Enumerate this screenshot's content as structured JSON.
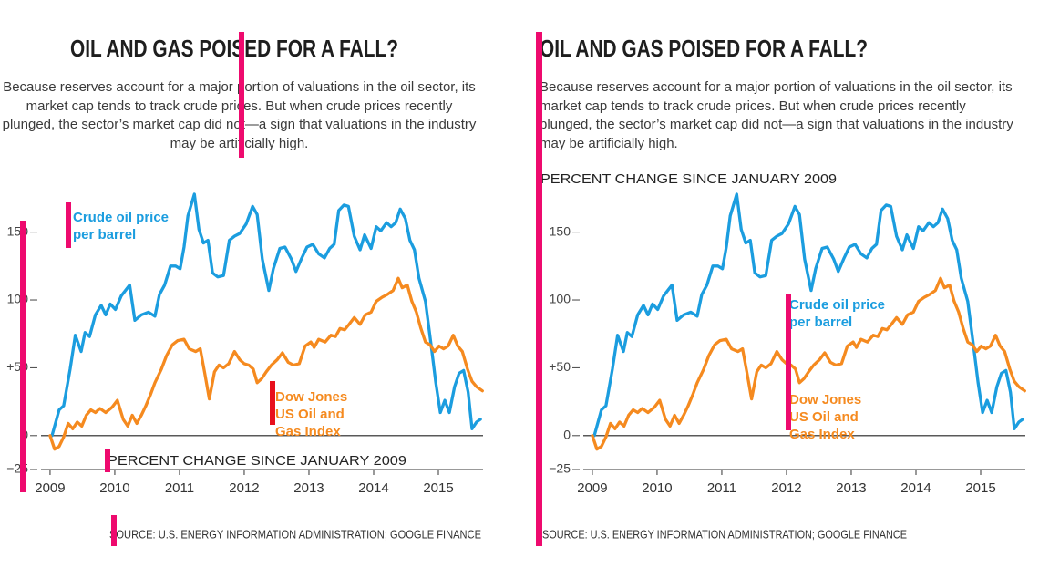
{
  "chart_data": [
    {
      "type": "line",
      "title": "OIL AND GAS POISED FOR A FALL?",
      "subtitle": "Because reserves account for a major portion of valuations in the oil sector, its market cap tends to track crude prices. But when crude prices recently plunged, the sector’s market cap did not—a sign that valuations in the industry may be artificially high.",
      "ylabel": "PERCENT CHANGE SINCE JANUARY 2009",
      "source": "SOURCE: U.S. ENERGY INFORMATION ADMINISTRATION; GOOGLE FINANCE",
      "xlim": [
        2008.86,
        2015.69
      ],
      "xticks": [
        2009,
        2010,
        2011,
        2012,
        2013,
        2014,
        2015
      ],
      "ylim": [
        -25,
        180
      ],
      "yticks": [
        {
          "value": -25,
          "label": "−25"
        },
        0,
        {
          "value": 50,
          "label": "+50"
        },
        100,
        150
      ],
      "zero_line": true,
      "series": [
        {
          "name": "Crude oil price per barrel",
          "color": "#1b9ddf",
          "x": [
            2009.03,
            2009.14,
            2009.21,
            2009.31,
            2009.39,
            2009.48,
            2009.54,
            2009.61,
            2009.7,
            2009.79,
            2009.86,
            2009.93,
            2010.01,
            2010.1,
            2010.23,
            2010.31,
            2010.41,
            2010.52,
            2010.62,
            2010.69,
            2010.77,
            2010.86,
            2010.94,
            2011.01,
            2011.07,
            2011.13,
            2011.23,
            2011.3,
            2011.37,
            2011.44,
            2011.51,
            2011.59,
            2011.68,
            2011.77,
            2011.85,
            2011.93,
            2012.03,
            2012.13,
            2012.2,
            2012.28,
            2012.38,
            2012.45,
            2012.55,
            2012.63,
            2012.73,
            2012.8,
            2012.89,
            2012.97,
            2013.06,
            2013.15,
            2013.24,
            2013.32,
            2013.39,
            2013.46,
            2013.54,
            2013.61,
            2013.7,
            2013.79,
            2013.86,
            2013.96,
            2014.04,
            2014.11,
            2014.2,
            2014.27,
            2014.34,
            2014.41,
            2014.49,
            2014.56,
            2014.63,
            2014.7,
            2014.8,
            2014.89,
            2014.96,
            2015.03,
            2015.1,
            2015.17,
            2015.25,
            2015.32,
            2015.39,
            2015.46,
            2015.52,
            2015.59,
            2015.65
          ],
          "values": [
            0,
            19,
            22,
            49,
            74,
            62,
            76,
            73,
            89,
            96,
            89,
            97,
            93,
            103,
            111,
            85,
            89,
            91,
            88,
            104,
            111,
            125,
            125,
            123,
            139,
            162,
            178,
            152,
            142,
            144,
            120,
            117,
            118,
            144,
            147,
            149,
            156,
            169,
            163,
            130,
            107,
            123,
            138,
            139,
            130,
            121,
            131,
            139,
            141,
            134,
            131,
            138,
            141,
            166,
            170,
            169,
            147,
            137,
            148,
            138,
            154,
            151,
            157,
            154,
            157,
            167,
            160,
            144,
            137,
            116,
            99,
            66,
            39,
            17,
            26,
            17,
            36,
            46,
            48,
            32,
            5,
            10,
            12
          ]
        },
        {
          "name": "Dow Jones US Oil and Gas Index",
          "color": "#f58a1f",
          "x": [
            2009.0,
            2009.07,
            2009.14,
            2009.21,
            2009.28,
            2009.35,
            2009.42,
            2009.49,
            2009.56,
            2009.63,
            2009.7,
            2009.77,
            2009.86,
            2009.96,
            2010.04,
            2010.13,
            2010.2,
            2010.27,
            2010.34,
            2010.41,
            2010.48,
            2010.55,
            2010.62,
            2010.72,
            2010.8,
            2010.89,
            2010.97,
            2011.07,
            2011.15,
            2011.25,
            2011.32,
            2011.39,
            2011.46,
            2011.54,
            2011.61,
            2011.68,
            2011.76,
            2011.85,
            2011.93,
            2012.0,
            2012.07,
            2012.14,
            2012.2,
            2012.27,
            2012.34,
            2012.42,
            2012.51,
            2012.59,
            2012.68,
            2012.76,
            2012.85,
            2012.94,
            2013.03,
            2013.08,
            2013.15,
            2013.25,
            2013.34,
            2013.41,
            2013.48,
            2013.55,
            2013.62,
            2013.7,
            2013.79,
            2013.87,
            2013.96,
            2014.04,
            2014.13,
            2014.21,
            2014.3,
            2014.38,
            2014.44,
            2014.52,
            2014.59,
            2014.66,
            2014.73,
            2014.8,
            2014.87,
            2014.94,
            2015.01,
            2015.08,
            2015.15,
            2015.23,
            2015.3,
            2015.37,
            2015.45,
            2015.52,
            2015.59,
            2015.68
          ],
          "values": [
            0,
            -10,
            -8,
            -1,
            9,
            5,
            10,
            7,
            15,
            19,
            17,
            20,
            17,
            21,
            26,
            12,
            7,
            15,
            9,
            15,
            22,
            30,
            39,
            49,
            59,
            67,
            70,
            71,
            64,
            62,
            64,
            46,
            27,
            47,
            52,
            50,
            53,
            62,
            56,
            53,
            52,
            49,
            39,
            42,
            47,
            52,
            56,
            61,
            54,
            52,
            53,
            66,
            69,
            65,
            71,
            69,
            74,
            73,
            79,
            78,
            82,
            87,
            82,
            89,
            91,
            99,
            102,
            104,
            107,
            116,
            109,
            111,
            99,
            91,
            79,
            69,
            67,
            62,
            66,
            64,
            66,
            74,
            66,
            62,
            49,
            40,
            36,
            33
          ]
        }
      ]
    },
    {
      "type": "line",
      "title": "OIL AND GAS POISED FOR A FALL?",
      "subtitle": "Because reserves account for a major portion of valuations in the oil sector, its market cap tends to track crude prices. But when crude prices recently plunged, the sector’s market cap did not—a sign that valuations in the industry may be artificially high.",
      "ylabel": "PERCENT CHANGE SINCE JANUARY 2009",
      "source": "SOURCE: U.S. ENERGY INFORMATION ADMINISTRATION; GOOGLE FINANCE",
      "xlim": [
        2008.86,
        2015.69
      ],
      "xticks": [
        2009,
        2010,
        2011,
        2012,
        2013,
        2014,
        2015
      ],
      "ylim": [
        -25,
        180
      ],
      "yticks": [
        {
          "value": -25,
          "label": "−25"
        },
        0,
        {
          "value": 50,
          "label": "+50"
        },
        100,
        150
      ],
      "zero_line": true,
      "series": [
        {
          "name": "Crude oil price per barrel",
          "color": "#1b9ddf",
          "x": [
            2009.03,
            2009.14,
            2009.21,
            2009.31,
            2009.39,
            2009.48,
            2009.54,
            2009.61,
            2009.7,
            2009.79,
            2009.86,
            2009.93,
            2010.01,
            2010.1,
            2010.23,
            2010.31,
            2010.41,
            2010.52,
            2010.62,
            2010.69,
            2010.77,
            2010.86,
            2010.94,
            2011.01,
            2011.07,
            2011.13,
            2011.23,
            2011.3,
            2011.37,
            2011.44,
            2011.51,
            2011.59,
            2011.68,
            2011.77,
            2011.85,
            2011.93,
            2012.03,
            2012.13,
            2012.2,
            2012.28,
            2012.38,
            2012.45,
            2012.55,
            2012.63,
            2012.73,
            2012.8,
            2012.89,
            2012.97,
            2013.06,
            2013.15,
            2013.24,
            2013.32,
            2013.39,
            2013.46,
            2013.54,
            2013.61,
            2013.7,
            2013.79,
            2013.86,
            2013.96,
            2014.04,
            2014.11,
            2014.2,
            2014.27,
            2014.34,
            2014.41,
            2014.49,
            2014.56,
            2014.63,
            2014.7,
            2014.8,
            2014.89,
            2014.96,
            2015.03,
            2015.1,
            2015.17,
            2015.25,
            2015.32,
            2015.39,
            2015.46,
            2015.52,
            2015.59,
            2015.65
          ],
          "values": [
            0,
            19,
            22,
            49,
            74,
            62,
            76,
            73,
            89,
            96,
            89,
            97,
            93,
            103,
            111,
            85,
            89,
            91,
            88,
            104,
            111,
            125,
            125,
            123,
            139,
            162,
            178,
            152,
            142,
            144,
            120,
            117,
            118,
            144,
            147,
            149,
            156,
            169,
            163,
            130,
            107,
            123,
            138,
            139,
            130,
            121,
            131,
            139,
            141,
            134,
            131,
            138,
            141,
            166,
            170,
            169,
            147,
            137,
            148,
            138,
            154,
            151,
            157,
            154,
            157,
            167,
            160,
            144,
            137,
            116,
            99,
            66,
            39,
            17,
            26,
            17,
            36,
            46,
            48,
            32,
            5,
            10,
            12
          ]
        },
        {
          "name": "Dow Jones US Oil and Gas Index",
          "color": "#f58a1f",
          "x": [
            2009.0,
            2009.07,
            2009.14,
            2009.21,
            2009.28,
            2009.35,
            2009.42,
            2009.49,
            2009.56,
            2009.63,
            2009.7,
            2009.77,
            2009.86,
            2009.96,
            2010.04,
            2010.13,
            2010.2,
            2010.27,
            2010.34,
            2010.41,
            2010.48,
            2010.55,
            2010.62,
            2010.72,
            2010.8,
            2010.89,
            2010.97,
            2011.07,
            2011.15,
            2011.25,
            2011.32,
            2011.39,
            2011.46,
            2011.54,
            2011.61,
            2011.68,
            2011.76,
            2011.85,
            2011.93,
            2012.0,
            2012.07,
            2012.14,
            2012.2,
            2012.27,
            2012.34,
            2012.42,
            2012.51,
            2012.59,
            2012.68,
            2012.76,
            2012.85,
            2012.94,
            2013.03,
            2013.08,
            2013.15,
            2013.25,
            2013.34,
            2013.41,
            2013.48,
            2013.55,
            2013.62,
            2013.7,
            2013.79,
            2013.87,
            2013.96,
            2014.04,
            2014.13,
            2014.21,
            2014.3,
            2014.38,
            2014.44,
            2014.52,
            2014.59,
            2014.66,
            2014.73,
            2014.8,
            2014.87,
            2014.94,
            2015.01,
            2015.08,
            2015.15,
            2015.23,
            2015.3,
            2015.37,
            2015.45,
            2015.52,
            2015.59,
            2015.68
          ],
          "values": [
            0,
            -10,
            -8,
            -1,
            9,
            5,
            10,
            7,
            15,
            19,
            17,
            20,
            17,
            21,
            26,
            12,
            7,
            15,
            9,
            15,
            22,
            30,
            39,
            49,
            59,
            67,
            70,
            71,
            64,
            62,
            64,
            46,
            27,
            47,
            52,
            50,
            53,
            62,
            56,
            53,
            52,
            49,
            39,
            42,
            47,
            52,
            56,
            61,
            54,
            52,
            53,
            66,
            69,
            65,
            71,
            69,
            74,
            73,
            79,
            78,
            82,
            87,
            82,
            89,
            91,
            99,
            102,
            104,
            107,
            116,
            109,
            111,
            99,
            91,
            79,
            69,
            67,
            62,
            66,
            64,
            66,
            74,
            66,
            62,
            49,
            40,
            36,
            33
          ]
        }
      ]
    }
  ]
}
